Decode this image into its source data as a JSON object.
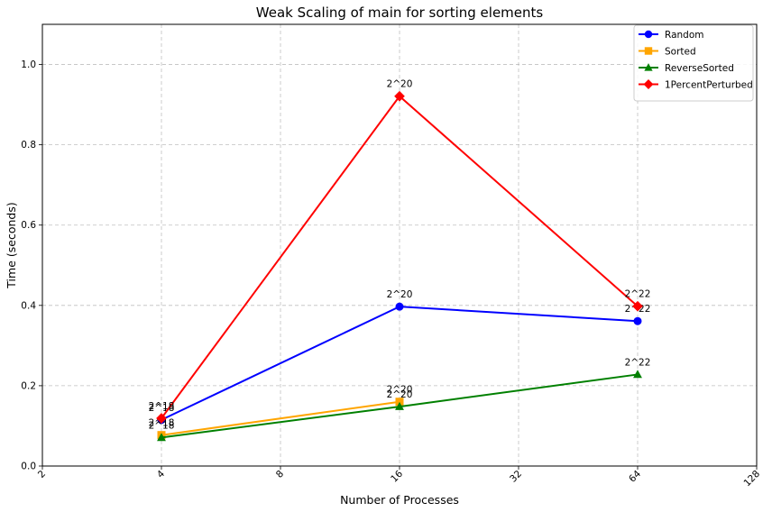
{
  "chart_data": {
    "type": "line",
    "title": "Weak Scaling of main for sorting elements",
    "xlabel": "Number of Processes",
    "ylabel": "Time (seconds)",
    "x_scale": "log2",
    "x_ticks": [
      2,
      4,
      8,
      16,
      32,
      64,
      128
    ],
    "x_tick_labels": [
      "2",
      "4",
      "8",
      "16",
      "32",
      "64",
      "128"
    ],
    "xlim": [
      2,
      128
    ],
    "ylim": [
      0,
      1.1
    ],
    "y_ticks": [
      0.0,
      0.2,
      0.4,
      0.6,
      0.8,
      1.0
    ],
    "y_tick_labels": [
      "0.0",
      "0.2",
      "0.4",
      "0.6",
      "0.8",
      "1.0"
    ],
    "grid": true,
    "legend_position": "top-right",
    "x": [
      4,
      16,
      64
    ],
    "point_labels": [
      "2^18",
      "2^20",
      "2^22"
    ],
    "series": [
      {
        "name": "Random",
        "values": [
          0.115,
          0.397,
          0.361
        ],
        "color": "#0000ff",
        "marker": "circle"
      },
      {
        "name": "Sorted",
        "values": [
          0.077,
          0.16,
          null
        ],
        "color": "#ffa500",
        "marker": "square"
      },
      {
        "name": "ReverseSorted",
        "values": [
          0.071,
          0.148,
          0.228
        ],
        "color": "#008000",
        "marker": "triangle"
      },
      {
        "name": "1PercentPerturbed",
        "values": [
          0.119,
          0.921,
          0.398
        ],
        "color": "#ff0000",
        "marker": "diamond"
      }
    ]
  }
}
